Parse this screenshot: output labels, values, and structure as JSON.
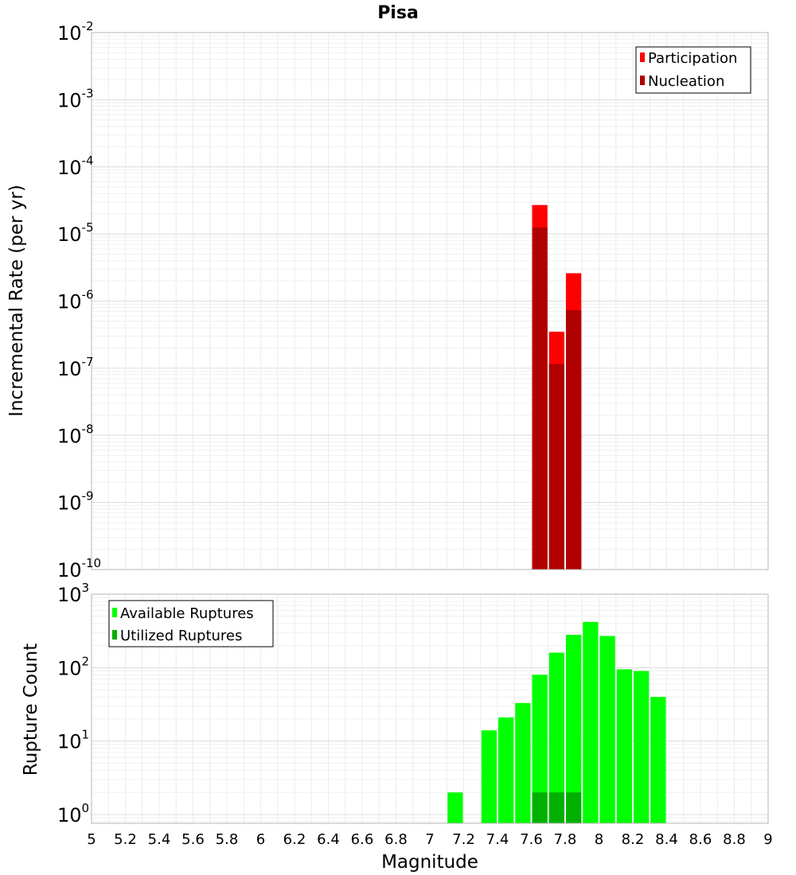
{
  "chart_data": [
    {
      "type": "bar",
      "title": "Pisa",
      "xlabel": "",
      "ylabel": "Incremental Rate (per yr)",
      "yscale": "log",
      "xlim": [
        5,
        9
      ],
      "ylim": [
        1e-10,
        0.01
      ],
      "ytick_exponents": [
        "-10",
        "-9",
        "-8",
        "-7",
        "-6",
        "-5",
        "-4",
        "-3",
        "-2"
      ],
      "legend_position": "top-right",
      "grid": true,
      "series": [
        {
          "name": "Participation",
          "color": "#ff0000",
          "x": [
            7.65,
            7.75,
            7.85
          ],
          "values": [
            2.7e-05,
            3.5e-07,
            2.6e-06
          ]
        },
        {
          "name": "Nucleation",
          "color": "#b00000",
          "x": [
            7.65,
            7.75,
            7.85
          ],
          "values": [
            1.25e-05,
            1.15e-07,
            7.3e-07
          ]
        }
      ]
    },
    {
      "type": "bar",
      "title": "",
      "xlabel": "Magnitude",
      "ylabel": "Rupture Count",
      "yscale": "log",
      "xlim": [
        5,
        9
      ],
      "ylim": [
        0.76,
        1000
      ],
      "ytick_exponents": [
        "0",
        "1",
        "2",
        "3"
      ],
      "xticks": [
        "5",
        "5.2",
        "5.4",
        "5.6",
        "5.8",
        "6",
        "6.2",
        "6.4",
        "6.6",
        "6.8",
        "7",
        "7.2",
        "7.4",
        "7.6",
        "7.8",
        "8",
        "8.2",
        "8.4",
        "8.6",
        "8.8",
        "9"
      ],
      "legend_position": "top-left",
      "grid": true,
      "series": [
        {
          "name": "Available Ruptures",
          "color": "#00ff00",
          "x": [
            7.15,
            7.35,
            7.45,
            7.55,
            7.65,
            7.75,
            7.85,
            7.95,
            8.05,
            8.15,
            8.25,
            8.35
          ],
          "values": [
            2,
            14,
            21,
            33,
            80,
            160,
            280,
            420,
            270,
            95,
            90,
            40
          ]
        },
        {
          "name": "Utilized Ruptures",
          "color": "#00b000",
          "x": [
            7.65,
            7.75,
            7.85
          ],
          "values": [
            2,
            2,
            2
          ]
        }
      ]
    }
  ]
}
